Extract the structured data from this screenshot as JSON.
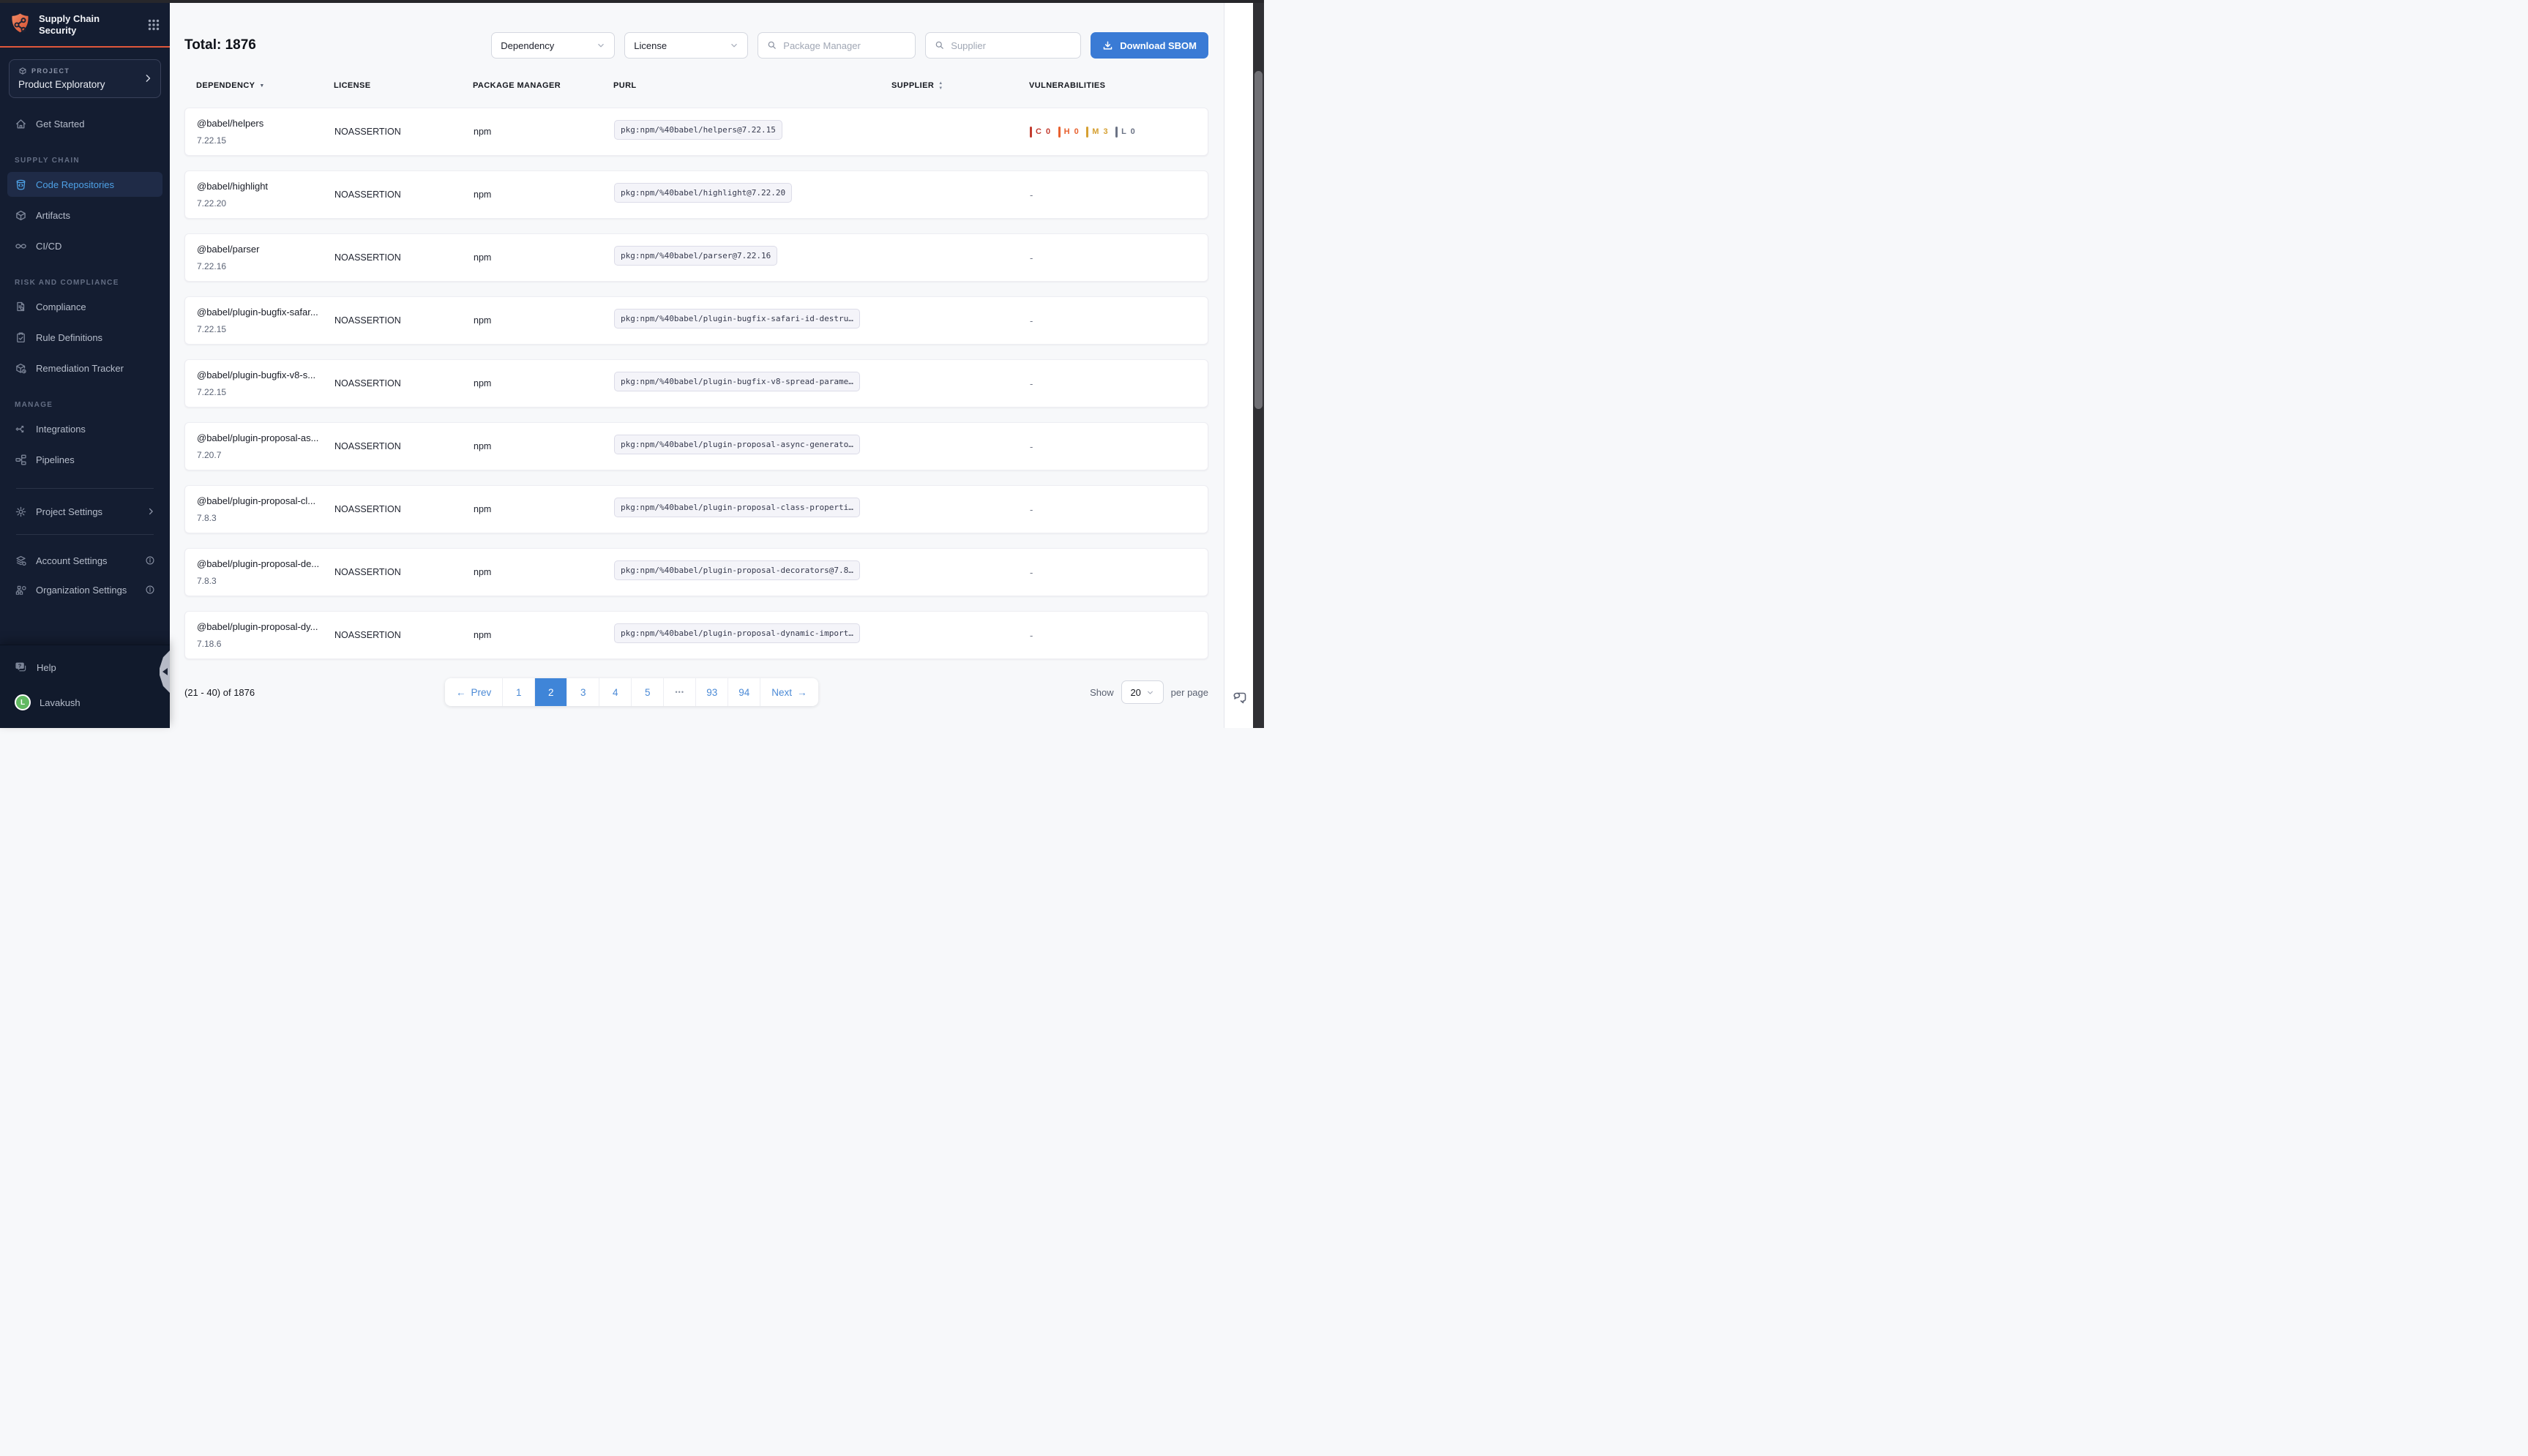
{
  "app": {
    "title": "Supply Chain Security"
  },
  "sidebar": {
    "project": {
      "label": "PROJECT",
      "name": "Product Exploratory"
    },
    "sections": {
      "supply_chain": "SUPPLY CHAIN",
      "risk_and_compliance": "RISK AND COMPLIANCE",
      "manage": "MANAGE"
    },
    "items": {
      "get_started": "Get Started",
      "code_repositories": "Code Repositories",
      "artifacts": "Artifacts",
      "cicd": "CI/CD",
      "compliance": "Compliance",
      "rule_definitions": "Rule Definitions",
      "remediation_tracker": "Remediation Tracker",
      "integrations": "Integrations",
      "pipelines": "Pipelines",
      "project_settings": "Project Settings",
      "account_settings": "Account Settings",
      "organization_settings": "Organization Settings",
      "help": "Help"
    },
    "user": {
      "name": "Lavakush",
      "initial": "L"
    }
  },
  "toolbar": {
    "total_label": "Total: 1876",
    "dependency_filter_label": "Dependency",
    "license_filter_label": "License",
    "package_manager_placeholder": "Package Manager",
    "supplier_placeholder": "Supplier",
    "download_sbom_label": "Download SBOM"
  },
  "table": {
    "columns": [
      {
        "label": "DEPENDENCY",
        "sort": "desc"
      },
      {
        "label": "LICENSE",
        "sort": null
      },
      {
        "label": "PACKAGE MANAGER",
        "sort": null
      },
      {
        "label": "PURL",
        "sort": null
      },
      {
        "label": "SUPPLIER",
        "sort": "both"
      },
      {
        "label": "VULNERABILITIES",
        "sort": null
      }
    ],
    "severity_order": [
      "C",
      "H",
      "M",
      "L"
    ],
    "empty_value": "-",
    "rows": [
      {
        "name": "@babel/helpers",
        "version": "7.22.15",
        "license": "NOASSERTION",
        "package_manager": "npm",
        "purl": "pkg:npm/%40babel/helpers@7.22.15",
        "supplier": "",
        "vulnerabilities": {
          "C": 0,
          "H": 0,
          "M": 3,
          "L": 0
        }
      },
      {
        "name": "@babel/highlight",
        "version": "7.22.20",
        "license": "NOASSERTION",
        "package_manager": "npm",
        "purl": "pkg:npm/%40babel/highlight@7.22.20",
        "supplier": "",
        "vulnerabilities": null
      },
      {
        "name": "@babel/parser",
        "version": "7.22.16",
        "license": "NOASSERTION",
        "package_manager": "npm",
        "purl": "pkg:npm/%40babel/parser@7.22.16",
        "supplier": "",
        "vulnerabilities": null
      },
      {
        "name": "@babel/plugin-bugfix-safar...",
        "version": "7.22.15",
        "license": "NOASSERTION",
        "package_manager": "npm",
        "purl": "pkg:npm/%40babel/plugin-bugfix-safari-id-destru…",
        "supplier": "",
        "vulnerabilities": null
      },
      {
        "name": "@babel/plugin-bugfix-v8-s...",
        "version": "7.22.15",
        "license": "NOASSERTION",
        "package_manager": "npm",
        "purl": "pkg:npm/%40babel/plugin-bugfix-v8-spread-parame…",
        "supplier": "",
        "vulnerabilities": null
      },
      {
        "name": "@babel/plugin-proposal-as...",
        "version": "7.20.7",
        "license": "NOASSERTION",
        "package_manager": "npm",
        "purl": "pkg:npm/%40babel/plugin-proposal-async-generato…",
        "supplier": "",
        "vulnerabilities": null
      },
      {
        "name": "@babel/plugin-proposal-cl...",
        "version": "7.8.3",
        "license": "NOASSERTION",
        "package_manager": "npm",
        "purl": "pkg:npm/%40babel/plugin-proposal-class-properti…",
        "supplier": "",
        "vulnerabilities": null
      },
      {
        "name": "@babel/plugin-proposal-de...",
        "version": "7.8.3",
        "license": "NOASSERTION",
        "package_manager": "npm",
        "purl": "pkg:npm/%40babel/plugin-proposal-decorators@7.8…",
        "supplier": "",
        "vulnerabilities": null
      },
      {
        "name": "@babel/plugin-proposal-dy...",
        "version": "7.18.6",
        "license": "NOASSERTION",
        "package_manager": "npm",
        "purl": "pkg:npm/%40babel/plugin-proposal-dynamic-import…",
        "supplier": "",
        "vulnerabilities": null
      }
    ]
  },
  "pagination": {
    "range_label": "(21 - 40) of 1876",
    "prev_label": "Prev",
    "next_label": "Next",
    "prev_arrow": "←",
    "next_arrow": "→",
    "pages": [
      "1",
      "2",
      "3",
      "4",
      "5",
      "•••",
      "93",
      "94"
    ],
    "active_page": "2",
    "show_label": "Show",
    "page_size": "20",
    "per_page_label": "per page"
  },
  "colors": {
    "accent_blue": "#3a7bd5",
    "brand_orange": "#e0573b",
    "sidebar_bg": "#141d31",
    "severity": {
      "C": "#c23c30",
      "H": "#e8602e",
      "M": "#d6a032",
      "L": "#6b7385"
    }
  }
}
